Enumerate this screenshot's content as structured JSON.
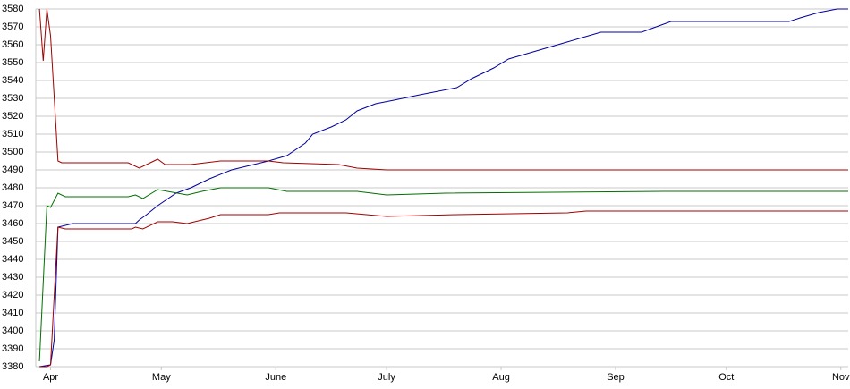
{
  "chart_data": {
    "type": "line",
    "ylim": [
      3380,
      3580
    ],
    "yticks": [
      3380,
      3390,
      3400,
      3410,
      3420,
      3430,
      3440,
      3450,
      3460,
      3470,
      3480,
      3490,
      3500,
      3510,
      3520,
      3530,
      3540,
      3550,
      3560,
      3570,
      3580
    ],
    "xlim": [
      -4,
      216
    ],
    "xticks": [
      {
        "value": 0,
        "label": "Apr"
      },
      {
        "value": 30,
        "label": "May"
      },
      {
        "value": 61,
        "label": "June"
      },
      {
        "value": 91,
        "label": "July"
      },
      {
        "value": 122,
        "label": "Aug"
      },
      {
        "value": 153,
        "label": "Sep"
      },
      {
        "value": 183,
        "label": "Oct"
      },
      {
        "value": 214,
        "label": "Nov"
      }
    ],
    "grid": true,
    "series": [
      {
        "color": "#0000a0",
        "x": [
          -3,
          0,
          1,
          2,
          6,
          23,
          24,
          26,
          29,
          34,
          38,
          43,
          49,
          59,
          64,
          69,
          71,
          76,
          80,
          83,
          88,
          93,
          100,
          110,
          114,
          120,
          124,
          129,
          134,
          139,
          144,
          149,
          160,
          164,
          168,
          200,
          203,
          208,
          213,
          216
        ],
        "values": [
          3380,
          3381,
          3395,
          3458,
          3460,
          3460,
          3462,
          3465,
          3470,
          3477,
          3480,
          3485,
          3490,
          3495,
          3498,
          3505,
          3510,
          3514,
          3518,
          3523,
          3527,
          3529,
          3532,
          3536,
          3541,
          3547,
          3552,
          3555,
          3558,
          3561,
          3564,
          3567,
          3567,
          3570,
          3573,
          3573,
          3575,
          3578,
          3580,
          3580
        ]
      },
      {
        "color": "#a00000",
        "x": [
          -3,
          -2,
          -1,
          0,
          2,
          3,
          21,
          24,
          27,
          29,
          31,
          38,
          46,
          59,
          63,
          78,
          83,
          91,
          216
        ],
        "values": [
          3580,
          3551,
          3580,
          3565,
          3495,
          3494,
          3494,
          3491,
          3494,
          3496,
          3493,
          3493,
          3495,
          3495,
          3494,
          3493,
          3491,
          3490,
          3490
        ]
      },
      {
        "color": "#007000",
        "x": [
          -3,
          -1,
          0,
          2,
          4,
          21,
          23,
          25,
          29,
          37,
          41,
          46,
          59,
          64,
          83,
          91,
          107,
          166,
          216
        ],
        "values": [
          3383,
          3470,
          3469,
          3477,
          3475,
          3475,
          3476,
          3474,
          3479,
          3476,
          3478,
          3480,
          3480,
          3478,
          3478,
          3476,
          3477,
          3478,
          3478
        ]
      },
      {
        "color": "#a00000",
        "x": [
          -3,
          -1,
          0,
          1,
          2,
          4,
          22,
          23,
          25,
          29,
          33,
          37,
          43,
          46,
          59,
          62,
          80,
          91,
          110,
          140,
          145,
          216
        ],
        "values": [
          3380,
          3380,
          3381,
          3420,
          3458,
          3457,
          3457,
          3458,
          3457,
          3461,
          3461,
          3460,
          3463,
          3465,
          3465,
          3466,
          3466,
          3464,
          3465,
          3466,
          3467,
          3467
        ]
      }
    ]
  }
}
